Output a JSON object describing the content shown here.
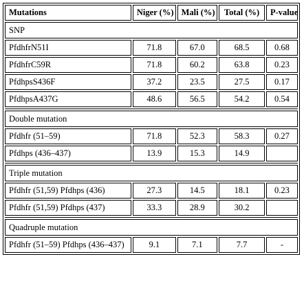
{
  "table": {
    "headers": [
      "Mutations",
      "Niger (%)",
      "Mali (%)",
      "Total (%)",
      "P-value"
    ],
    "sections": [
      {
        "title": "SNP",
        "rows": [
          [
            "PfdhfrN51I",
            "71.8",
            "67.0",
            "68.5",
            "0.68"
          ],
          [
            "PfdhfrC59R",
            "71.8",
            "60.2",
            "63.8",
            "0.23"
          ],
          [
            "PfdhpsS436F",
            "37.2",
            "23.5",
            "27.5",
            "0.17"
          ],
          [
            "PfdhpsA437G",
            "48.6",
            "56.5",
            "54.2",
            "0.54"
          ]
        ]
      },
      {
        "title": "Double mutation",
        "rows": [
          [
            "Pfdhfr (51–59)",
            "71.8",
            "52.3",
            "58.3",
            "0.27"
          ],
          [
            "Pfdhps (436–437)",
            "13.9",
            "15.3",
            "14.9",
            ""
          ]
        ]
      },
      {
        "title": "Triple mutation",
        "rows": [
          [
            "Pfdhfr (51,59) Pfdhps (436)",
            "27.3",
            "14.5",
            "18.1",
            "0.23"
          ],
          [
            "Pfdhfr (51,59) Pfdhps (437)",
            "33.3",
            "28.9",
            "30.2",
            ""
          ]
        ]
      },
      {
        "title": "Quadruple mutation",
        "rows": [
          [
            "Pfdhfr (51–59) Pfdhps (436–437)",
            "9.1",
            "7.1",
            "7.7",
            "-"
          ]
        ]
      }
    ]
  }
}
